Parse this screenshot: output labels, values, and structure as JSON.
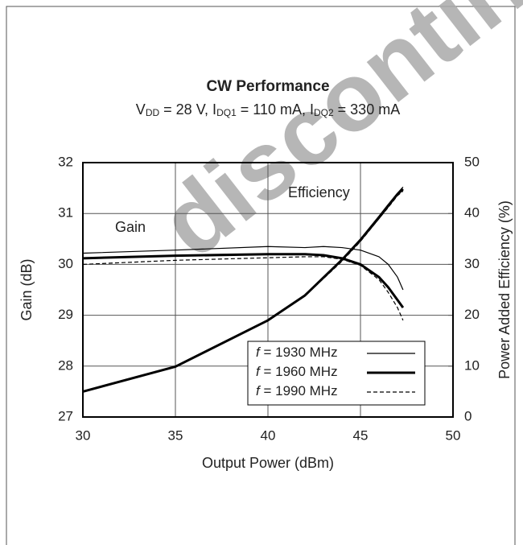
{
  "chart_data": {
    "type": "line",
    "title": "CW Performance",
    "subtitle": [
      "V",
      "DD",
      " = 28 V, I",
      "DQ1",
      " = 110 mA, I",
      "DQ2",
      " = 330 mA"
    ],
    "watermark": "discontinued",
    "x_label": "Output Power (dBm)",
    "y_label": "Gain (dB)",
    "y2_label": "Power Added Efficiency (%)",
    "annotations": [
      "Gain",
      "Efficiency"
    ],
    "x": [
      30,
      35,
      40,
      42,
      43,
      44,
      45,
      46,
      46.5,
      47,
      47.3
    ],
    "xlim": [
      30,
      50
    ],
    "xticks": [
      30,
      35,
      40,
      45,
      50
    ],
    "ylim": [
      27,
      32
    ],
    "yticks": [
      27,
      28,
      29,
      30,
      31,
      32
    ],
    "y2lim": [
      0,
      50
    ],
    "y2ticks": [
      0,
      10,
      20,
      30,
      40,
      50
    ],
    "grid": true,
    "legend": "lower right",
    "series": [
      {
        "name": "f = 1930 MHz",
        "color": "#000000",
        "width": 1.2,
        "dash": false,
        "values": [
          30.22,
          30.28,
          30.35,
          30.33,
          30.35,
          30.33,
          30.28,
          30.15,
          30.0,
          29.75,
          29.5
        ]
      },
      {
        "name": "f = 1960 MHz",
        "color": "#000000",
        "width": 3,
        "dash": false,
        "values": [
          30.12,
          30.17,
          30.2,
          30.2,
          30.18,
          30.12,
          30.0,
          29.75,
          29.55,
          29.3,
          29.15
        ]
      },
      {
        "name": "f = 1990 MHz",
        "color": "#000000",
        "width": 1.2,
        "dash": true,
        "values": [
          30.0,
          30.08,
          30.13,
          30.15,
          30.15,
          30.1,
          29.98,
          29.7,
          29.45,
          29.15,
          28.9
        ]
      },
      {
        "name": "f = 1930 MHz",
        "color": "#000000",
        "width": 1.2,
        "dash": false,
        "axis": "y2",
        "values": [
          5.1,
          10,
          19,
          24,
          27.5,
          31,
          35,
          39.5,
          41.8,
          44,
          45.2
        ]
      },
      {
        "name": "f = 1960 MHz",
        "color": "#000000",
        "width": 3,
        "dash": false,
        "axis": "y2",
        "values": [
          5,
          9.9,
          19,
          23.9,
          27.4,
          30.9,
          34.8,
          39.2,
          41.5,
          43.8,
          44.8
        ]
      },
      {
        "name": "f = 1990 MHz",
        "color": "#000000",
        "width": 1.2,
        "dash": true,
        "axis": "y2",
        "values": [
          5,
          9.8,
          18.9,
          23.8,
          27.2,
          30.6,
          34.5,
          39,
          41.2,
          43.5,
          44.4
        ]
      }
    ]
  }
}
